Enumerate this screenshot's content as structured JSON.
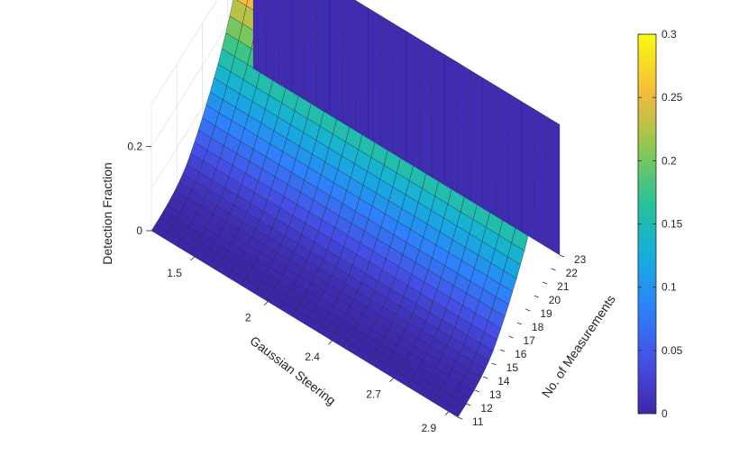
{
  "chart_data": {
    "type": "surface",
    "zlabel": "Detection Fraction",
    "xlabel": "Gaussian Steering",
    "ylabel": "No. of Measurements",
    "x_ticks": [
      "1.5",
      "2",
      "2.4",
      "2.7",
      "2.9"
    ],
    "y_ticks": [
      "11",
      "12",
      "13",
      "14",
      "15",
      "16",
      "17",
      "18",
      "19",
      "20",
      "21",
      "22",
      "23"
    ],
    "z_ticks": [
      "0",
      "0.2"
    ],
    "zlim": [
      0,
      0.3
    ],
    "y_range": [
      11,
      23
    ],
    "colormap": "parula",
    "colorbar": {
      "ticks": [
        "0",
        "0.05",
        "0.1",
        "0.15",
        "0.2",
        "0.25",
        "0.3"
      ],
      "range": [
        0,
        0.3
      ]
    },
    "surface_profile": {
      "description_axis": "No. of Measurements",
      "y": [
        11,
        12,
        13,
        14,
        15,
        16,
        17,
        18,
        19,
        20,
        21,
        22,
        23
      ],
      "z": [
        0.0,
        0.0,
        0.002,
        0.008,
        0.02,
        0.045,
        0.075,
        0.11,
        0.15,
        0.2,
        0.26,
        0.3,
        0.31
      ]
    },
    "grid": true
  }
}
